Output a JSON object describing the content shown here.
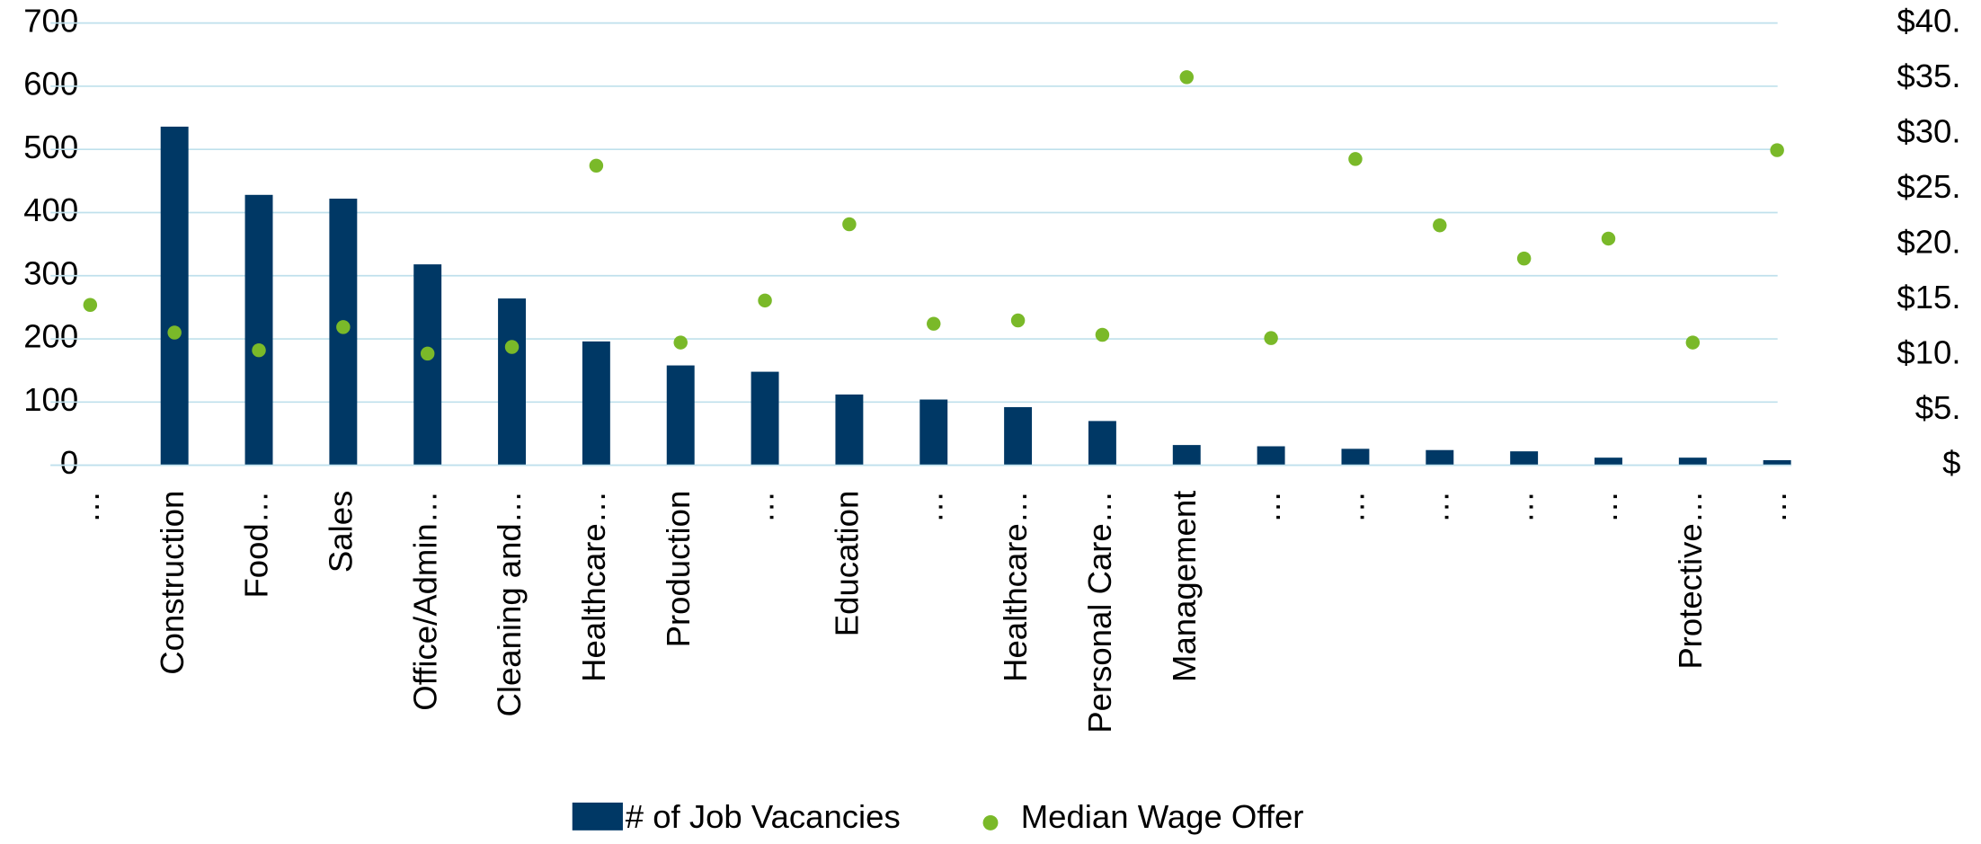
{
  "chart_data": {
    "type": "bar_scatter",
    "categories": [
      "…",
      "Construction",
      "Food…",
      "Sales",
      "Office/Admin…",
      "Cleaning and…",
      "Healthcare…",
      "Production",
      "…",
      "Education",
      "…",
      "Healthcare…",
      "Personal Care…",
      "Management",
      "…",
      "…",
      "…",
      "…",
      "…",
      "Protective…",
      "…"
    ],
    "series": [
      {
        "name": "# of Job Vacancies",
        "color": "#003865",
        "kind": "bar",
        "values": [
          0,
          536,
          428,
          422,
          318,
          264,
          196,
          158,
          148,
          112,
          104,
          92,
          70,
          32,
          30,
          26,
          24,
          22,
          12,
          12,
          8
        ]
      },
      {
        "name": "Median Wage Offer",
        "color": "#7ab929",
        "kind": "dot",
        "axis": "y2",
        "values": [
          14.5,
          12.0,
          10.4,
          12.5,
          10.1,
          10.7,
          27.1,
          11.1,
          14.9,
          21.8,
          12.8,
          13.1,
          11.8,
          35.1,
          11.5,
          27.7,
          21.7,
          18.7,
          20.5,
          11.1,
          28.5
        ]
      }
    ],
    "ylim": [
      0,
      700
    ],
    "yticks": [
      0,
      100,
      200,
      300,
      400,
      500,
      600,
      700
    ],
    "y2lim": [
      0,
      40
    ],
    "y2ticks": [
      {
        "value": 0,
        "label": "$"
      },
      {
        "value": 5,
        "label": "$5."
      },
      {
        "value": 10,
        "label": "$10."
      },
      {
        "value": 15,
        "label": "$15."
      },
      {
        "value": 20,
        "label": "$20."
      },
      {
        "value": 25,
        "label": "$25."
      },
      {
        "value": 30,
        "label": "$30."
      },
      {
        "value": 35,
        "label": "$35."
      },
      {
        "value": 40,
        "label": "$40."
      }
    ],
    "grid": true,
    "grid_color": "#bfe0ec",
    "legend": "bottom"
  }
}
